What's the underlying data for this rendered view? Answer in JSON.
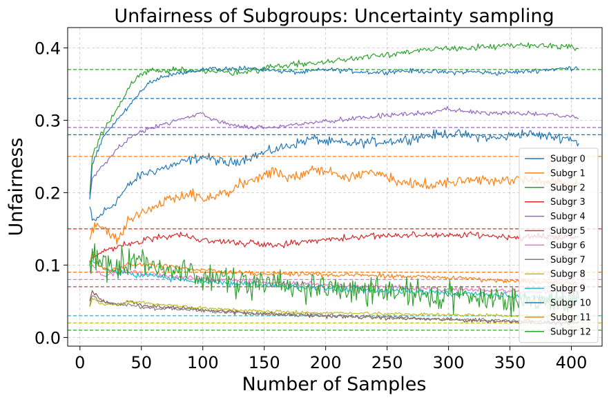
{
  "chart_data": {
    "type": "line",
    "title": "Unfairness of Subgroups: Uncertainty sampling",
    "xlabel": "Number of Samples",
    "ylabel": "Unfairness",
    "xlim": [
      -10,
      425
    ],
    "ylim": [
      -0.012,
      0.428
    ],
    "xticks": [
      0,
      50,
      100,
      150,
      200,
      250,
      300,
      350,
      400
    ],
    "xtick_labels": [
      "0",
      "50",
      "100",
      "150",
      "200",
      "250",
      "300",
      "350",
      "400"
    ],
    "yticks": [
      0.0,
      0.1,
      0.2,
      0.3,
      0.4
    ],
    "ytick_labels": [
      "0.0",
      "0.1",
      "0.2",
      "0.3",
      "0.4"
    ],
    "grid": true,
    "legend_position": "right",
    "series": [
      {
        "name": "Subgr 0",
        "color": "#1f77b4",
        "threshold": 0.28,
        "x": [
          8,
          10,
          15,
          20,
          25,
          30,
          35,
          40,
          50,
          60,
          70,
          80,
          90,
          100,
          110,
          120,
          130,
          140,
          150,
          160,
          170,
          180,
          190,
          200,
          220,
          240,
          260,
          280,
          300,
          320,
          340,
          360,
          380,
          400,
          406
        ],
        "y": [
          0.18,
          0.16,
          0.165,
          0.175,
          0.18,
          0.19,
          0.2,
          0.21,
          0.225,
          0.23,
          0.235,
          0.24,
          0.245,
          0.25,
          0.245,
          0.24,
          0.245,
          0.25,
          0.255,
          0.26,
          0.265,
          0.27,
          0.275,
          0.27,
          0.268,
          0.27,
          0.272,
          0.278,
          0.282,
          0.278,
          0.275,
          0.282,
          0.278,
          0.275,
          0.268
        ],
        "noise": 0.006
      },
      {
        "name": "Subgr 1",
        "color": "#ff7f0e",
        "threshold": 0.25,
        "x": [
          8,
          10,
          15,
          20,
          25,
          30,
          40,
          50,
          60,
          70,
          80,
          90,
          100,
          110,
          120,
          130,
          140,
          150,
          160,
          170,
          180,
          190,
          200,
          220,
          240,
          260,
          280,
          300,
          320,
          340,
          360,
          380,
          400,
          406
        ],
        "y": [
          0.13,
          0.15,
          0.16,
          0.15,
          0.14,
          0.135,
          0.16,
          0.175,
          0.18,
          0.19,
          0.195,
          0.2,
          0.19,
          0.195,
          0.2,
          0.21,
          0.215,
          0.225,
          0.23,
          0.22,
          0.225,
          0.23,
          0.23,
          0.22,
          0.23,
          0.215,
          0.21,
          0.215,
          0.22,
          0.215,
          0.22,
          0.215,
          0.21,
          0.215
        ],
        "noise": 0.007
      },
      {
        "name": "Subgr 2",
        "color": "#2ca02c",
        "threshold": 0.37,
        "x": [
          8,
          10,
          15,
          20,
          25,
          30,
          35,
          40,
          45,
          50,
          60,
          70,
          80,
          100,
          120,
          140,
          160,
          180,
          200,
          220,
          240,
          260,
          280,
          300,
          320,
          340,
          360,
          380,
          400,
          406
        ],
        "y": [
          0.2,
          0.25,
          0.27,
          0.29,
          0.3,
          0.315,
          0.33,
          0.345,
          0.355,
          0.365,
          0.37,
          0.368,
          0.37,
          0.368,
          0.366,
          0.368,
          0.375,
          0.378,
          0.38,
          0.385,
          0.39,
          0.393,
          0.396,
          0.4,
          0.4,
          0.402,
          0.403,
          0.403,
          0.402,
          0.4
        ],
        "noise": 0.004
      },
      {
        "name": "Subgr 3",
        "color": "#d62728",
        "threshold": 0.15,
        "x": [
          8,
          10,
          15,
          20,
          30,
          40,
          50,
          60,
          70,
          80,
          90,
          100,
          120,
          140,
          160,
          180,
          200,
          220,
          240,
          260,
          280,
          300,
          320,
          340,
          360,
          380,
          400,
          406
        ],
        "y": [
          0.1,
          0.11,
          0.115,
          0.12,
          0.125,
          0.13,
          0.135,
          0.138,
          0.14,
          0.142,
          0.138,
          0.135,
          0.132,
          0.13,
          0.128,
          0.132,
          0.135,
          0.138,
          0.14,
          0.14,
          0.142,
          0.14,
          0.142,
          0.14,
          0.138,
          0.14,
          0.138,
          0.138
        ],
        "noise": 0.004
      },
      {
        "name": "Subgr 4",
        "color": "#9467bd",
        "threshold": 0.29,
        "x": [
          8,
          10,
          15,
          20,
          25,
          30,
          40,
          50,
          60,
          70,
          80,
          90,
          100,
          110,
          120,
          140,
          160,
          180,
          200,
          220,
          240,
          260,
          280,
          300,
          320,
          340,
          360,
          380,
          400,
          406
        ],
        "y": [
          0.19,
          0.22,
          0.23,
          0.24,
          0.25,
          0.26,
          0.275,
          0.285,
          0.29,
          0.295,
          0.3,
          0.305,
          0.31,
          0.3,
          0.295,
          0.29,
          0.29,
          0.295,
          0.298,
          0.302,
          0.305,
          0.308,
          0.31,
          0.315,
          0.312,
          0.31,
          0.31,
          0.308,
          0.305,
          0.303
        ],
        "noise": 0.003
      },
      {
        "name": "Subgr 5",
        "color": "#8c564b",
        "threshold": 0.07,
        "x": [
          8,
          10,
          15,
          20,
          30,
          40,
          50,
          70,
          90,
          110,
          130,
          150,
          170,
          190,
          210,
          230,
          250,
          270,
          290,
          310,
          330,
          350,
          370,
          390,
          406
        ],
        "y": [
          0.05,
          0.065,
          0.055,
          0.05,
          0.045,
          0.05,
          0.045,
          0.042,
          0.04,
          0.037,
          0.035,
          0.033,
          0.031,
          0.03,
          0.029,
          0.028,
          0.027,
          0.026,
          0.025,
          0.024,
          0.023,
          0.022,
          0.021,
          0.02,
          0.02
        ],
        "noise": 0.0025
      },
      {
        "name": "Subgr 6",
        "color": "#e377c2",
        "threshold": 0.08,
        "x": [
          8,
          10,
          15,
          20,
          30,
          40,
          50,
          70,
          90,
          110,
          130,
          150,
          170,
          190,
          210,
          230,
          250,
          270,
          290,
          310,
          330,
          350,
          370,
          390,
          406
        ],
        "y": [
          0.09,
          0.1,
          0.09,
          0.085,
          0.09,
          0.092,
          0.088,
          0.085,
          0.082,
          0.08,
          0.078,
          0.076,
          0.075,
          0.074,
          0.072,
          0.071,
          0.07,
          0.068,
          0.067,
          0.066,
          0.065,
          0.064,
          0.063,
          0.063,
          0.062
        ],
        "noise": 0.003
      },
      {
        "name": "Subgr 7",
        "color": "#7f7f7f",
        "threshold": 0.09,
        "x": [
          8,
          10,
          15,
          20,
          30,
          40,
          50,
          70,
          90,
          110,
          130,
          150,
          170,
          190,
          210,
          230,
          250,
          270,
          290,
          310,
          330,
          350,
          370,
          390,
          406
        ],
        "y": [
          0.045,
          0.06,
          0.05,
          0.048,
          0.046,
          0.045,
          0.042,
          0.04,
          0.038,
          0.036,
          0.034,
          0.033,
          0.032,
          0.031,
          0.03,
          0.029,
          0.028,
          0.027,
          0.026,
          0.025,
          0.024,
          0.023,
          0.022,
          0.021,
          0.021
        ],
        "noise": 0.0025
      },
      {
        "name": "Subgr 8",
        "color": "#bcbd22",
        "threshold": 0.02,
        "x": [
          8,
          10,
          15,
          20,
          30,
          40,
          50,
          70,
          90,
          110,
          130,
          150,
          170,
          190,
          210,
          230,
          250,
          270,
          290,
          310,
          330,
          350,
          370,
          390,
          406
        ],
        "y": [
          0.04,
          0.055,
          0.048,
          0.045,
          0.045,
          0.05,
          0.048,
          0.045,
          0.042,
          0.04,
          0.038,
          0.036,
          0.035,
          0.034,
          0.034,
          0.033,
          0.033,
          0.032,
          0.032,
          0.031,
          0.031,
          0.03,
          0.03,
          0.03,
          0.03
        ],
        "noise": 0.002
      },
      {
        "name": "Subgr 9",
        "color": "#17becf",
        "threshold": 0.03,
        "x": [
          8,
          10,
          15,
          20,
          30,
          40,
          50,
          60,
          70,
          80,
          100,
          120,
          140,
          160,
          180,
          200,
          220,
          240,
          260,
          280,
          300,
          320,
          340,
          360,
          380,
          400,
          406
        ],
        "y": [
          0.1,
          0.105,
          0.1,
          0.095,
          0.09,
          0.088,
          0.085,
          0.085,
          0.083,
          0.08,
          0.078,
          0.075,
          0.073,
          0.072,
          0.07,
          0.069,
          0.067,
          0.065,
          0.064,
          0.063,
          0.062,
          0.06,
          0.058,
          0.056,
          0.055,
          0.054,
          0.053
        ],
        "noise": 0.004
      },
      {
        "name": "Subgr 10",
        "color": "#1f77b4",
        "threshold": 0.33,
        "x": [
          8,
          10,
          15,
          20,
          25,
          30,
          35,
          40,
          45,
          50,
          55,
          60,
          70,
          80,
          90,
          100,
          110,
          120,
          140,
          160,
          180,
          200,
          220,
          240,
          260,
          280,
          300,
          320,
          340,
          360,
          380,
          400,
          406
        ],
        "y": [
          0.19,
          0.24,
          0.26,
          0.28,
          0.29,
          0.3,
          0.31,
          0.32,
          0.33,
          0.34,
          0.35,
          0.355,
          0.36,
          0.365,
          0.368,
          0.37,
          0.372,
          0.37,
          0.372,
          0.368,
          0.366,
          0.37,
          0.368,
          0.366,
          0.368,
          0.368,
          0.366,
          0.367,
          0.365,
          0.367,
          0.37,
          0.372,
          0.373
        ],
        "noise": 0.003
      },
      {
        "name": "Subgr 11",
        "color": "#ff7f0e",
        "threshold": 0.09,
        "x": [
          8,
          10,
          15,
          20,
          30,
          40,
          50,
          70,
          90,
          110,
          130,
          150,
          170,
          190,
          210,
          230,
          250,
          270,
          290,
          310,
          330,
          350,
          370,
          390,
          406
        ],
        "y": [
          0.1,
          0.12,
          0.1,
          0.095,
          0.095,
          0.1,
          0.1,
          0.098,
          0.095,
          0.092,
          0.09,
          0.088,
          0.088,
          0.087,
          0.086,
          0.086,
          0.085,
          0.084,
          0.083,
          0.082,
          0.08,
          0.078,
          0.077,
          0.076,
          0.075
        ],
        "noise": 0.003
      },
      {
        "name": "Subgr 12",
        "color": "#2ca02c",
        "threshold": 0.01,
        "x": [
          8,
          10,
          15,
          20,
          30,
          40,
          50,
          60,
          70,
          80,
          100,
          120,
          140,
          160,
          180,
          200,
          220,
          240,
          260,
          280,
          300,
          320,
          340,
          360,
          380,
          400,
          406
        ],
        "y": [
          0.1,
          0.12,
          0.11,
          0.1,
          0.1,
          0.11,
          0.11,
          0.1,
          0.095,
          0.09,
          0.085,
          0.08,
          0.075,
          0.072,
          0.07,
          0.068,
          0.065,
          0.062,
          0.06,
          0.058,
          0.056,
          0.055,
          0.053,
          0.052,
          0.05,
          0.05,
          0.05
        ],
        "noise": 0.018
      }
    ]
  }
}
